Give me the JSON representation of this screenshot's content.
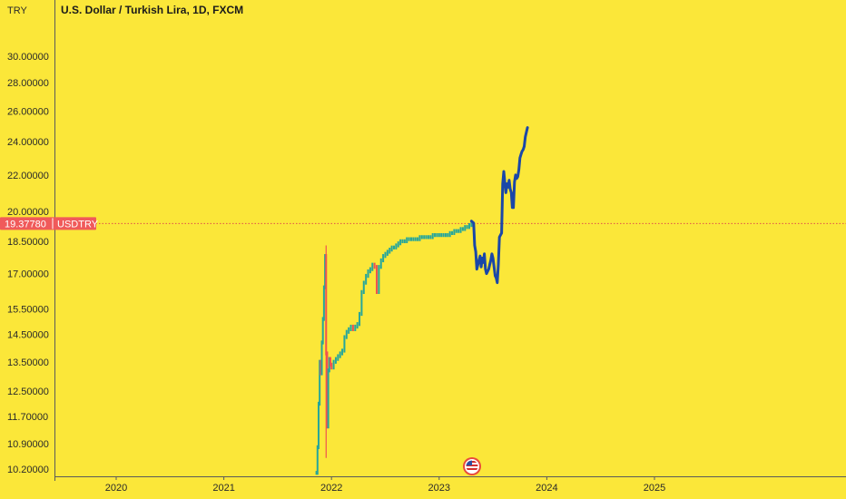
{
  "header": {
    "unit": "TRY",
    "title": "U.S. Dollar / Turkish Lira, 1D, FXCM"
  },
  "price_tag": {
    "value": "19.37780",
    "symbol": "USDTRY",
    "color": "#f05a5a"
  },
  "colors": {
    "background": "#fbe739",
    "line_recent": "#1a47a8",
    "candle_up": "#26a69a",
    "candle_down": "#ef5350",
    "axis_line": "#5a5a5a",
    "dotted_line": "#e0504a"
  },
  "chart_data": {
    "type": "line",
    "title": "U.S. Dollar / Turkish Lira, 1D, FXCM",
    "ylabel": "TRY",
    "y_scale": "log",
    "ylim": [
      9.9,
      33.5
    ],
    "xlim": [
      2019.5,
      2026.0
    ],
    "y_ticks": [
      "30.00000",
      "28.00000",
      "26.00000",
      "24.00000",
      "22.00000",
      "20.00000",
      "18.50000",
      "17.00000",
      "15.50000",
      "14.50000",
      "13.50000",
      "12.50000",
      "11.70000",
      "10.90000",
      "10.20000"
    ],
    "x_ticks": [
      "2020",
      "2021",
      "2022",
      "2023",
      "2024",
      "2025"
    ],
    "current_price": 19.3778,
    "grid": false,
    "series": [
      {
        "style": "candles",
        "x": [
          2021.86,
          2021.87,
          2021.88,
          2021.89,
          2021.9,
          2021.91,
          2021.92,
          2021.93,
          2021.94,
          2021.95,
          2021.96,
          2021.97,
          2021.98,
          2021.99,
          2022.0,
          2022.02,
          2022.04,
          2022.06,
          2022.08,
          2022.1,
          2022.12,
          2022.14,
          2022.16,
          2022.18,
          2022.2,
          2022.22,
          2022.24,
          2022.26,
          2022.28,
          2022.3,
          2022.32,
          2022.34,
          2022.36,
          2022.38,
          2022.4,
          2022.42,
          2022.44,
          2022.46,
          2022.48,
          2022.5,
          2022.52,
          2022.54,
          2022.56,
          2022.58,
          2022.6,
          2022.62,
          2022.64,
          2022.66,
          2022.68,
          2022.7,
          2022.72,
          2022.74,
          2022.76,
          2022.78,
          2022.8,
          2022.82,
          2022.84,
          2022.86,
          2022.88,
          2022.9,
          2022.92,
          2022.94,
          2022.96,
          2022.98,
          2023.0,
          2023.02,
          2023.04,
          2023.06,
          2023.08,
          2023.1,
          2023.12,
          2023.14,
          2023.16,
          2023.18,
          2023.2,
          2023.22,
          2023.24,
          2023.26,
          2023.28,
          2023.3
        ],
        "y": [
          10.1,
          10.8,
          12.1,
          13.5,
          13.1,
          14.2,
          15.1,
          16.4,
          17.8,
          13.8,
          11.4,
          13.2,
          13.6,
          13.4,
          13.3,
          13.5,
          13.6,
          13.7,
          13.8,
          13.9,
          14.4,
          14.6,
          14.7,
          14.8,
          14.7,
          14.8,
          14.9,
          15.3,
          16.2,
          16.6,
          16.9,
          17.1,
          17.2,
          17.4,
          17.3,
          16.2,
          17.3,
          17.6,
          17.8,
          17.9,
          18.0,
          18.1,
          18.2,
          18.2,
          18.3,
          18.4,
          18.5,
          18.5,
          18.5,
          18.6,
          18.6,
          18.6,
          18.6,
          18.6,
          18.6,
          18.7,
          18.7,
          18.7,
          18.7,
          18.7,
          18.7,
          18.8,
          18.8,
          18.8,
          18.8,
          18.8,
          18.8,
          18.8,
          18.8,
          18.9,
          18.9,
          19.0,
          19.0,
          19.0,
          19.1,
          19.1,
          19.2,
          19.2,
          19.3,
          19.4
        ]
      },
      {
        "style": "line",
        "x": [
          2023.3,
          2023.32,
          2023.33,
          2023.34,
          2023.35,
          2023.36,
          2023.37,
          2023.38,
          2023.39,
          2023.4,
          2023.41,
          2023.42,
          2023.43,
          2023.44,
          2023.45,
          2023.46,
          2023.47,
          2023.48,
          2023.49,
          2023.5,
          2023.51,
          2023.52,
          2023.53,
          2023.54,
          2023.55,
          2023.56,
          2023.57,
          2023.58,
          2023.59,
          2023.6,
          2023.61,
          2023.62,
          2023.63,
          2023.64,
          2023.65,
          2023.66,
          2023.67,
          2023.68,
          2023.69,
          2023.7,
          2023.71,
          2023.72,
          2023.73,
          2023.74,
          2023.75,
          2023.76,
          2023.77,
          2023.78,
          2023.79,
          2023.8,
          2023.81,
          2023.82
        ],
        "y": [
          19.5,
          19.4,
          18.3,
          18.0,
          17.2,
          17.4,
          17.6,
          17.8,
          17.3,
          17.7,
          17.5,
          17.9,
          17.2,
          17.0,
          17.1,
          17.2,
          17.4,
          17.6,
          17.9,
          17.7,
          17.3,
          16.9,
          16.8,
          16.6,
          17.4,
          18.7,
          18.8,
          18.9,
          21.5,
          22.2,
          21.6,
          21.0,
          21.5,
          21.3,
          21.7,
          21.2,
          21.0,
          20.2,
          20.2,
          21.6,
          22.0,
          21.8,
          21.9,
          22.3,
          23.0,
          23.2,
          23.4,
          23.5,
          23.7,
          24.3,
          24.6,
          24.9
        ]
      }
    ]
  },
  "markers": {
    "flag_icon": "us-flag-icon"
  }
}
